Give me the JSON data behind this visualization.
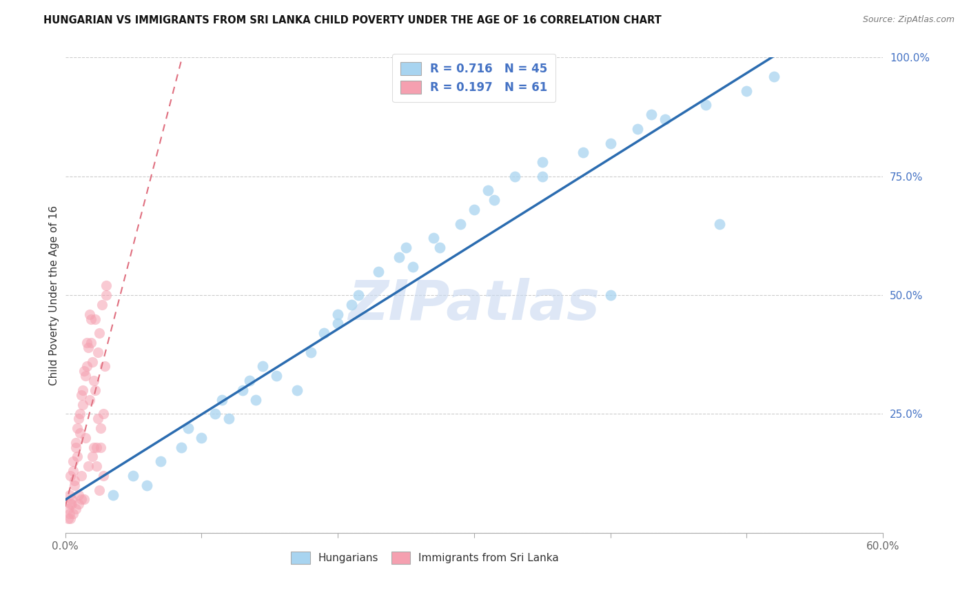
{
  "title": "HUNGARIAN VS IMMIGRANTS FROM SRI LANKA CHILD POVERTY UNDER THE AGE OF 16 CORRELATION CHART",
  "source": "Source: ZipAtlas.com",
  "ylabel": "Child Poverty Under the Age of 16",
  "xlim": [
    0.0,
    0.6
  ],
  "ylim": [
    0.0,
    1.0
  ],
  "xticks": [
    0.0,
    0.1,
    0.2,
    0.3,
    0.4,
    0.5,
    0.6
  ],
  "xticklabels": [
    "0.0%",
    "",
    "",
    "",
    "",
    "",
    "60.0%"
  ],
  "yticks": [
    0.0,
    0.25,
    0.5,
    0.75,
    1.0
  ],
  "yticklabels": [
    "",
    "25.0%",
    "50.0%",
    "75.0%",
    "100.0%"
  ],
  "R_hungarian": 0.716,
  "N_hungarian": 45,
  "R_srilanka": 0.197,
  "N_srilanka": 61,
  "color_hungarian": "#A8D4F0",
  "color_srilanka": "#F5A0B0",
  "color_trendline_hungarian": "#2B6CB0",
  "color_trendline_srilanka": "#E07080",
  "legend_label_hungarian": "Hungarians",
  "legend_label_srilanka": "Immigrants from Sri Lanka",
  "watermark": "ZIPatlas",
  "hungarian_x": [
    0.035,
    0.05,
    0.06,
    0.07,
    0.085,
    0.09,
    0.1,
    0.11,
    0.115,
    0.12,
    0.13,
    0.135,
    0.14,
    0.145,
    0.155,
    0.17,
    0.19,
    0.2,
    0.21,
    0.215,
    0.23,
    0.245,
    0.25,
    0.255,
    0.27,
    0.275,
    0.29,
    0.3,
    0.31,
    0.315,
    0.33,
    0.35,
    0.38,
    0.4,
    0.42,
    0.43,
    0.44,
    0.47,
    0.5,
    0.52,
    0.2,
    0.35,
    0.4,
    0.48,
    0.18
  ],
  "hungarian_y": [
    0.08,
    0.12,
    0.1,
    0.15,
    0.18,
    0.22,
    0.2,
    0.25,
    0.28,
    0.24,
    0.3,
    0.32,
    0.28,
    0.35,
    0.33,
    0.3,
    0.42,
    0.44,
    0.48,
    0.5,
    0.55,
    0.58,
    0.6,
    0.56,
    0.62,
    0.6,
    0.65,
    0.68,
    0.72,
    0.7,
    0.75,
    0.78,
    0.8,
    0.82,
    0.85,
    0.88,
    0.87,
    0.9,
    0.93,
    0.96,
    0.46,
    0.75,
    0.5,
    0.65,
    0.38
  ],
  "srilanka_x": [
    0.002,
    0.003,
    0.004,
    0.005,
    0.006,
    0.007,
    0.008,
    0.009,
    0.01,
    0.011,
    0.012,
    0.013,
    0.014,
    0.015,
    0.016,
    0.017,
    0.018,
    0.019,
    0.02,
    0.021,
    0.022,
    0.023,
    0.024,
    0.025,
    0.026,
    0.027,
    0.028,
    0.029,
    0.03,
    0.003,
    0.005,
    0.007,
    0.009,
    0.011,
    0.013,
    0.015,
    0.017,
    0.019,
    0.021,
    0.023,
    0.025,
    0.004,
    0.006,
    0.008,
    0.01,
    0.012,
    0.014,
    0.016,
    0.018,
    0.02,
    0.022,
    0.024,
    0.026,
    0.028,
    0.002,
    0.004,
    0.006,
    0.008,
    0.01,
    0.012,
    0.03
  ],
  "srilanka_y": [
    0.05,
    0.08,
    0.12,
    0.06,
    0.15,
    0.1,
    0.18,
    0.22,
    0.08,
    0.25,
    0.12,
    0.3,
    0.07,
    0.2,
    0.35,
    0.14,
    0.28,
    0.4,
    0.16,
    0.32,
    0.45,
    0.18,
    0.38,
    0.42,
    0.22,
    0.48,
    0.25,
    0.35,
    0.5,
    0.04,
    0.07,
    0.11,
    0.16,
    0.21,
    0.27,
    0.33,
    0.39,
    0.45,
    0.18,
    0.14,
    0.09,
    0.06,
    0.13,
    0.19,
    0.24,
    0.29,
    0.34,
    0.4,
    0.46,
    0.36,
    0.3,
    0.24,
    0.18,
    0.12,
    0.03,
    0.03,
    0.04,
    0.05,
    0.06,
    0.07,
    0.52
  ]
}
